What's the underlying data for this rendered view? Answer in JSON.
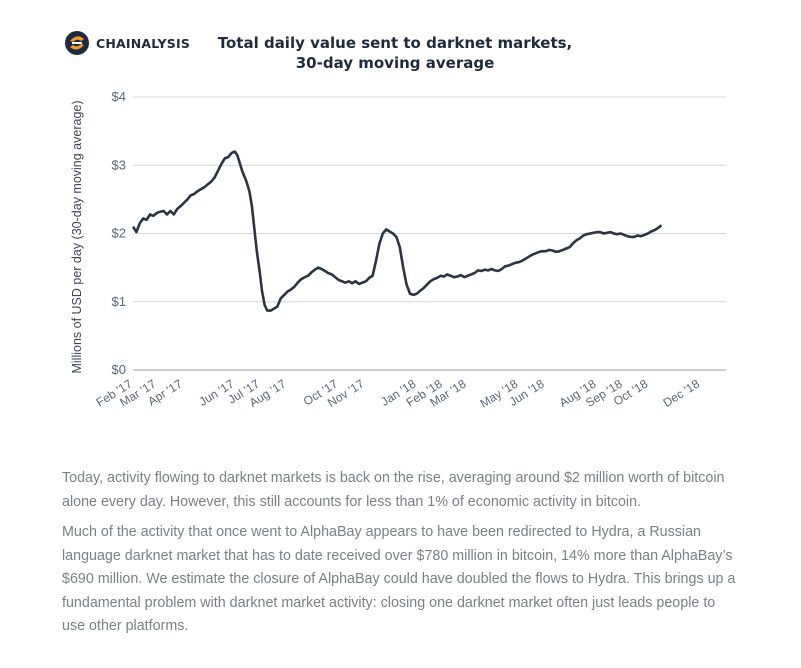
{
  "brand": {
    "name": "CHAINALYSIS",
    "logo_icon": "chainalysis-logo-icon",
    "accent": "#f39a2b",
    "navy": "#1f2a3c"
  },
  "chart_data": {
    "type": "line",
    "title_line1": "Total daily value sent to darknet markets,",
    "title_line2": "30-day moving average",
    "ylabel": "Millions of USD per day (30-day moving average)",
    "xlabel": "",
    "ylim": [
      0,
      4
    ],
    "yticks": [
      0,
      1,
      2,
      3,
      4
    ],
    "ytick_labels": [
      "$0",
      "$1",
      "$2",
      "$3",
      "$4"
    ],
    "grid": true,
    "line_color": "#2b3442",
    "x_start": "2017-02-01",
    "x_end": "2018-12-31",
    "xticks": [
      {
        "date": "2017-02-01",
        "label": "Feb '17"
      },
      {
        "date": "2017-03-01",
        "label": "Mar '17"
      },
      {
        "date": "2017-04-01",
        "label": "Apr '17"
      },
      {
        "date": "2017-06-01",
        "label": "Jun '17"
      },
      {
        "date": "2017-07-01",
        "label": "Jul '17"
      },
      {
        "date": "2017-08-01",
        "label": "Aug '17"
      },
      {
        "date": "2017-10-01",
        "label": "Oct '17"
      },
      {
        "date": "2017-11-01",
        "label": "Nov '17"
      },
      {
        "date": "2018-01-01",
        "label": "Jan '18"
      },
      {
        "date": "2018-02-01",
        "label": "Feb '18"
      },
      {
        "date": "2018-03-01",
        "label": "Mar '18"
      },
      {
        "date": "2018-05-01",
        "label": "May '18"
      },
      {
        "date": "2018-06-01",
        "label": "Jun '18"
      },
      {
        "date": "2018-08-01",
        "label": "Aug '18"
      },
      {
        "date": "2018-09-01",
        "label": "Sep '18"
      },
      {
        "date": "2018-10-01",
        "label": "Oct '18"
      },
      {
        "date": "2018-12-01",
        "label": "Dec '18"
      }
    ],
    "series": [
      {
        "points": [
          [
            "2017-02-01",
            2.1
          ],
          [
            "2017-02-05",
            2.02
          ],
          [
            "2017-02-09",
            2.15
          ],
          [
            "2017-02-13",
            2.22
          ],
          [
            "2017-02-17",
            2.2
          ],
          [
            "2017-02-21",
            2.28
          ],
          [
            "2017-02-25",
            2.26
          ],
          [
            "2017-03-01",
            2.3
          ],
          [
            "2017-03-05",
            2.32
          ],
          [
            "2017-03-09",
            2.33
          ],
          [
            "2017-03-13",
            2.28
          ],
          [
            "2017-03-17",
            2.33
          ],
          [
            "2017-03-21",
            2.28
          ],
          [
            "2017-03-25",
            2.36
          ],
          [
            "2017-03-29",
            2.4
          ],
          [
            "2017-04-02",
            2.45
          ],
          [
            "2017-04-06",
            2.5
          ],
          [
            "2017-04-10",
            2.56
          ],
          [
            "2017-04-14",
            2.58
          ],
          [
            "2017-04-18",
            2.62
          ],
          [
            "2017-04-22",
            2.65
          ],
          [
            "2017-04-26",
            2.68
          ],
          [
            "2017-04-30",
            2.72
          ],
          [
            "2017-05-04",
            2.76
          ],
          [
            "2017-05-08",
            2.82
          ],
          [
            "2017-05-12",
            2.92
          ],
          [
            "2017-05-16",
            3.02
          ],
          [
            "2017-05-20",
            3.1
          ],
          [
            "2017-05-24",
            3.12
          ],
          [
            "2017-05-28",
            3.18
          ],
          [
            "2017-06-01",
            3.2
          ],
          [
            "2017-06-04",
            3.14
          ],
          [
            "2017-06-07",
            3.02
          ],
          [
            "2017-06-10",
            2.9
          ],
          [
            "2017-06-14",
            2.78
          ],
          [
            "2017-06-18",
            2.62
          ],
          [
            "2017-06-21",
            2.4
          ],
          [
            "2017-06-24",
            2.05
          ],
          [
            "2017-06-27",
            1.72
          ],
          [
            "2017-06-30",
            1.45
          ],
          [
            "2017-07-03",
            1.15
          ],
          [
            "2017-07-06",
            0.95
          ],
          [
            "2017-07-09",
            0.87
          ],
          [
            "2017-07-13",
            0.87
          ],
          [
            "2017-07-17",
            0.9
          ],
          [
            "2017-07-21",
            0.93
          ],
          [
            "2017-07-25",
            1.05
          ],
          [
            "2017-07-29",
            1.1
          ],
          [
            "2017-08-02",
            1.15
          ],
          [
            "2017-08-06",
            1.18
          ],
          [
            "2017-08-10",
            1.22
          ],
          [
            "2017-08-14",
            1.28
          ],
          [
            "2017-08-18",
            1.33
          ],
          [
            "2017-08-22",
            1.36
          ],
          [
            "2017-08-26",
            1.38
          ],
          [
            "2017-08-30",
            1.43
          ],
          [
            "2017-09-03",
            1.47
          ],
          [
            "2017-09-07",
            1.5
          ],
          [
            "2017-09-11",
            1.48
          ],
          [
            "2017-09-15",
            1.45
          ],
          [
            "2017-09-19",
            1.42
          ],
          [
            "2017-09-23",
            1.4
          ],
          [
            "2017-09-27",
            1.36
          ],
          [
            "2017-10-01",
            1.32
          ],
          [
            "2017-10-05",
            1.3
          ],
          [
            "2017-10-09",
            1.28
          ],
          [
            "2017-10-13",
            1.3
          ],
          [
            "2017-10-17",
            1.27
          ],
          [
            "2017-10-21",
            1.3
          ],
          [
            "2017-10-25",
            1.26
          ],
          [
            "2017-10-29",
            1.28
          ],
          [
            "2017-11-02",
            1.3
          ],
          [
            "2017-11-06",
            1.35
          ],
          [
            "2017-11-10",
            1.38
          ],
          [
            "2017-11-14",
            1.6
          ],
          [
            "2017-11-18",
            1.85
          ],
          [
            "2017-11-22",
            2.0
          ],
          [
            "2017-11-26",
            2.06
          ],
          [
            "2017-11-30",
            2.03
          ],
          [
            "2017-12-04",
            2.0
          ],
          [
            "2017-12-08",
            1.95
          ],
          [
            "2017-12-12",
            1.8
          ],
          [
            "2017-12-16",
            1.5
          ],
          [
            "2017-12-20",
            1.25
          ],
          [
            "2017-12-24",
            1.12
          ],
          [
            "2017-12-28",
            1.1
          ],
          [
            "2018-01-01",
            1.12
          ],
          [
            "2018-01-05",
            1.16
          ],
          [
            "2018-01-09",
            1.2
          ],
          [
            "2018-01-13",
            1.25
          ],
          [
            "2018-01-17",
            1.3
          ],
          [
            "2018-01-21",
            1.33
          ],
          [
            "2018-01-25",
            1.35
          ],
          [
            "2018-01-29",
            1.38
          ],
          [
            "2018-02-02",
            1.37
          ],
          [
            "2018-02-06",
            1.4
          ],
          [
            "2018-02-10",
            1.38
          ],
          [
            "2018-02-14",
            1.36
          ],
          [
            "2018-02-18",
            1.37
          ],
          [
            "2018-02-22",
            1.39
          ],
          [
            "2018-02-26",
            1.36
          ],
          [
            "2018-03-02",
            1.38
          ],
          [
            "2018-03-06",
            1.4
          ],
          [
            "2018-03-10",
            1.42
          ],
          [
            "2018-03-14",
            1.46
          ],
          [
            "2018-03-18",
            1.45
          ],
          [
            "2018-03-22",
            1.47
          ],
          [
            "2018-03-26",
            1.46
          ],
          [
            "2018-03-30",
            1.48
          ],
          [
            "2018-04-03",
            1.46
          ],
          [
            "2018-04-07",
            1.45
          ],
          [
            "2018-04-11",
            1.48
          ],
          [
            "2018-04-15",
            1.52
          ],
          [
            "2018-04-19",
            1.53
          ],
          [
            "2018-04-23",
            1.55
          ],
          [
            "2018-04-27",
            1.57
          ],
          [
            "2018-05-01",
            1.58
          ],
          [
            "2018-05-05",
            1.6
          ],
          [
            "2018-05-09",
            1.63
          ],
          [
            "2018-05-13",
            1.66
          ],
          [
            "2018-05-17",
            1.69
          ],
          [
            "2018-05-21",
            1.71
          ],
          [
            "2018-05-25",
            1.73
          ],
          [
            "2018-05-29",
            1.74
          ],
          [
            "2018-06-02",
            1.74
          ],
          [
            "2018-06-06",
            1.76
          ],
          [
            "2018-06-10",
            1.75
          ],
          [
            "2018-06-14",
            1.73
          ],
          [
            "2018-06-18",
            1.74
          ],
          [
            "2018-06-22",
            1.76
          ],
          [
            "2018-06-26",
            1.78
          ],
          [
            "2018-06-30",
            1.8
          ],
          [
            "2018-07-04",
            1.86
          ],
          [
            "2018-07-08",
            1.9
          ],
          [
            "2018-07-12",
            1.93
          ],
          [
            "2018-07-16",
            1.97
          ],
          [
            "2018-07-20",
            1.99
          ],
          [
            "2018-07-24",
            2.0
          ],
          [
            "2018-07-28",
            2.01
          ],
          [
            "2018-08-01",
            2.02
          ],
          [
            "2018-08-05",
            2.02
          ],
          [
            "2018-08-09",
            2.0
          ],
          [
            "2018-08-13",
            2.01
          ],
          [
            "2018-08-17",
            2.02
          ],
          [
            "2018-08-21",
            2.0
          ],
          [
            "2018-08-25",
            1.99
          ],
          [
            "2018-08-29",
            2.0
          ],
          [
            "2018-09-02",
            1.98
          ],
          [
            "2018-09-06",
            1.96
          ],
          [
            "2018-09-10",
            1.95
          ],
          [
            "2018-09-14",
            1.95
          ],
          [
            "2018-09-18",
            1.97
          ],
          [
            "2018-09-22",
            1.96
          ],
          [
            "2018-09-26",
            1.98
          ],
          [
            "2018-09-30",
            2.0
          ],
          [
            "2018-10-04",
            2.03
          ],
          [
            "2018-10-08",
            2.05
          ],
          [
            "2018-10-12",
            2.08
          ],
          [
            "2018-10-16",
            2.12
          ]
        ]
      }
    ]
  },
  "body": {
    "paragraph1": "Today, activity flowing to darknet markets is back on the rise, averaging around $2 million worth of bitcoin alone every day. However, this still accounts for less than 1% of economic activity in bitcoin.",
    "paragraph2": "Much of the activity that once went to AlphaBay appears to have been redirected to Hydra, a Russian language darknet market that has to date received over $780 million in bitcoin, 14% more than AlphaBay’s $690 million. We estimate the closure of AlphaBay could have doubled the flows to Hydra. This brings up a fundamental problem with darknet market activity: closing one darknet market often just leads people to use other platforms."
  }
}
